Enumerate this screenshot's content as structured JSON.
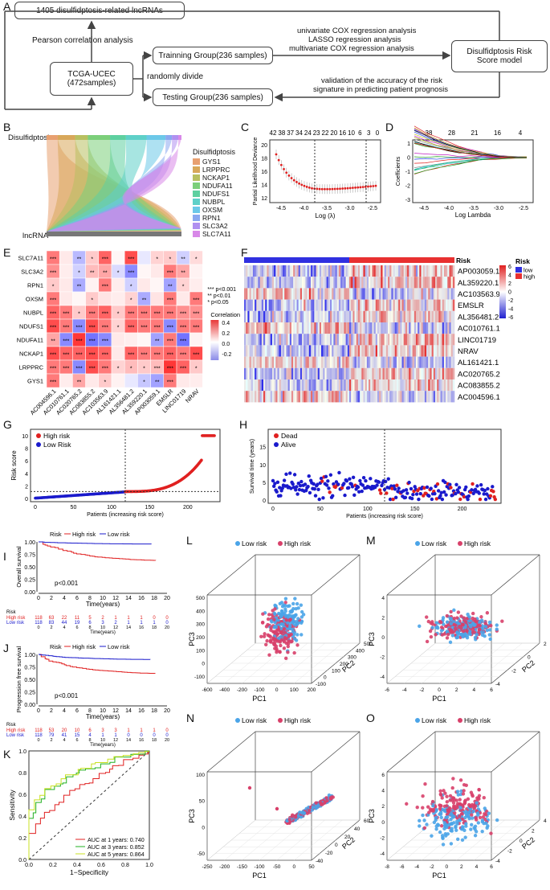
{
  "panelA": {
    "letter": "A",
    "box_lncrnas": "1405 disulfidptosis-related lncRNAs",
    "label_pearson": "Pearson correlation analysis",
    "box_tcga": "TCGA-UCEC\n(472samples)",
    "label_divide": "randomly divide",
    "box_training": "Trainning Group(236 samples)",
    "box_testing": "Testing Group(236 samples)",
    "methods": [
      "univariate COX regression analysis",
      "LASSO regression analysis",
      "multivariate COX regression analysis"
    ],
    "box_model": "Disulfidptosis Risk\nScore model",
    "validation": [
      "validation of the accuracy of the risk",
      "signature in predicting patient prognosis"
    ]
  },
  "panelB": {
    "letter": "B",
    "top_label": "Disulfidptosis",
    "bottom_label": "lncRNA",
    "legend_title": "Disulfidptosis",
    "genes": [
      "GYS1",
      "LRPPRC",
      "NCKAP1",
      "NDUFA11",
      "NDUFS1",
      "NUBPL",
      "OXSM",
      "RPN1",
      "SLC3A2",
      "SLC7A11"
    ],
    "colors": [
      "#e8a070",
      "#d8a85a",
      "#b8c060",
      "#7ccf7a",
      "#5ed0a0",
      "#5ed0c8",
      "#6cc8e8",
      "#8aa8f0",
      "#b090f0",
      "#d888e8"
    ]
  },
  "panelC": {
    "letter": "C",
    "top_ticks": [
      "42",
      "38",
      "37",
      "34",
      "24",
      "23",
      "22",
      "20",
      "16",
      "10",
      "6",
      "3",
      "0"
    ],
    "ylabel": "Partial Likelihood Deviance",
    "xlabel": "Log (λ)",
    "yticks": [
      "12",
      "14",
      "16",
      "18",
      "20"
    ],
    "xticks": [
      "-4.5",
      "-4.0",
      "-3.5",
      "-3.0",
      "-2.5"
    ]
  },
  "panelD": {
    "letter": "D",
    "top_ticks": [
      "38",
      "28",
      "21",
      "16",
      "4"
    ],
    "ylabel": "Coefficients",
    "xlabel": "Log Lambda",
    "yticks": [
      "-3",
      "-2",
      "-1",
      "0",
      "1"
    ],
    "xticks": [
      "-4.5",
      "-4.0",
      "-3.5",
      "-3.0",
      "-2.5"
    ]
  },
  "panelE": {
    "letter": "E",
    "rows": [
      "SLC7A11",
      "SLC3A2",
      "RPN1",
      "OXSM",
      "NUBPL",
      "NDUFS1",
      "NDUFA11",
      "NCKAP1",
      "LRPPRC",
      "GYS1"
    ],
    "cols": [
      "AC004596.1",
      "AC010761.1",
      "AC020765.2",
      "AC083855.2",
      "AC103563.9",
      "AL161421.1",
      "AL356481.2",
      "AL359220.1",
      "AP003059.1",
      "EMSLR",
      "LINC01719",
      "NRAV"
    ],
    "stars": [
      [
        "***",
        "",
        "**",
        "*",
        "***",
        "",
        "***",
        "",
        "*",
        "*",
        "**",
        "*"
      ],
      [
        "***",
        "",
        "*",
        "**",
        "**",
        "*",
        "***",
        "",
        "",
        "***",
        "**",
        ""
      ],
      [
        "*",
        "",
        "**",
        "",
        "***",
        "",
        "*",
        "",
        "",
        "**",
        "*",
        ""
      ],
      [
        "***",
        "",
        "",
        "*",
        "",
        "",
        "*",
        "**",
        "",
        "***",
        "",
        "***"
      ],
      [
        "***",
        "***",
        "*",
        "***",
        "***",
        "*",
        "***",
        "***",
        "***",
        "***",
        "***",
        "***"
      ],
      [
        "***",
        "***",
        "***",
        "***",
        "***",
        "*",
        "***",
        "***",
        "***",
        "***",
        "***",
        "***"
      ],
      [
        "**",
        "***",
        "***",
        "***",
        "***",
        "",
        "",
        "",
        "**",
        "***",
        "***",
        ""
      ],
      [
        "***",
        "***",
        "***",
        "***",
        "***",
        "",
        "***",
        "***",
        "***",
        "***",
        "***",
        "***"
      ],
      [
        "***",
        "***",
        "***",
        "***",
        "***",
        "*",
        "*",
        "*",
        "***",
        "***",
        "***",
        "*"
      ],
      [
        "***",
        "",
        "**",
        "",
        "*",
        "",
        "",
        "*",
        "**",
        "***",
        "",
        ""
      ]
    ],
    "values": [
      [
        0.3,
        0.05,
        -0.15,
        0.12,
        0.35,
        0.02,
        0.4,
        -0.05,
        0.1,
        0.12,
        -0.1,
        0.08
      ],
      [
        0.25,
        0.04,
        -0.1,
        0.15,
        0.2,
        -0.08,
        -0.25,
        0.02,
        0.05,
        0.3,
        0.2,
        0.03
      ],
      [
        0.12,
        0.05,
        -0.18,
        0.03,
        0.3,
        0.04,
        -0.1,
        0.05,
        0.02,
        -0.2,
        0.1,
        0.04
      ],
      [
        0.3,
        0.05,
        0.02,
        0.12,
        0.06,
        0.04,
        0.1,
        -0.18,
        0.06,
        0.3,
        0.05,
        0.3
      ],
      [
        0.35,
        0.3,
        0.12,
        0.3,
        0.35,
        0.12,
        0.3,
        0.3,
        0.3,
        0.3,
        0.25,
        0.25
      ],
      [
        0.4,
        0.3,
        -0.25,
        0.4,
        0.3,
        0.1,
        0.35,
        0.3,
        0.3,
        -0.25,
        0.3,
        0.3
      ],
      [
        0.2,
        -0.25,
        0.45,
        -0.3,
        -0.25,
        0.05,
        0.04,
        0.02,
        -0.2,
        0.3,
        -0.3,
        0.03
      ],
      [
        0.4,
        0.35,
        0.35,
        0.4,
        0.35,
        0.05,
        0.35,
        0.3,
        0.3,
        0.35,
        0.3,
        0.4
      ],
      [
        0.3,
        0.3,
        -0.25,
        0.4,
        0.3,
        0.1,
        0.15,
        0.12,
        0.15,
        0.45,
        0.35,
        0.12
      ],
      [
        0.3,
        0.04,
        0.2,
        0.05,
        0.12,
        0.03,
        -0.05,
        -0.12,
        -0.2,
        0.3,
        0.05,
        0.04
      ]
    ],
    "sig_legend": [
      "*** p<0.001",
      "**  p<0.01",
      "*   p<0.05"
    ],
    "corr_title": "Correlation",
    "corr_ticks": [
      "0.4",
      "0.2",
      "0.0",
      "-0.2"
    ]
  },
  "panelF": {
    "letter": "F",
    "risk_label": "Risk",
    "genes": [
      "AP003059.1",
      "AL359220.1",
      "AC103563.9",
      "EMSLR",
      "AL356481.2",
      "AC010761.1",
      "LINC01719",
      "NRAV",
      "AL161421.1",
      "AC020765.2",
      "AC083855.2",
      "AC004596.1"
    ],
    "scale_ticks": [
      "6",
      "4",
      "2",
      "0",
      "-2",
      "-4",
      "-6"
    ],
    "legend_title": "Risk",
    "legend_items": [
      "low",
      "high"
    ]
  },
  "panelG": {
    "letter": "G",
    "legend": [
      "High risk",
      "Low Risk"
    ],
    "ylabel": "Risk score",
    "xlabel": "Patients (increasing risk score)",
    "yticks": [
      "0",
      "2",
      "4",
      "6",
      "8",
      "10"
    ],
    "xticks": [
      "0",
      "50",
      "100",
      "150",
      "200"
    ]
  },
  "panelH": {
    "letter": "H",
    "legend": [
      "Dead",
      "Alive"
    ],
    "ylabel": "Survival time (years)",
    "xlabel": "Patients (increasing risk score)",
    "yticks": [
      "0",
      "5",
      "10",
      "15"
    ],
    "xticks": [
      "0",
      "50",
      "100",
      "150",
      "200"
    ]
  },
  "panelI": {
    "letter": "I",
    "legend": [
      "Risk",
      "High risk",
      "Low risk"
    ],
    "ylabel": "Overall survival",
    "xlabel": "Time(years)",
    "pvalue": "p<0.001",
    "yticks": [
      "0.00",
      "0.25",
      "0.50",
      "0.75",
      "1.00"
    ],
    "xticks": [
      "0",
      "2",
      "4",
      "6",
      "8",
      "10",
      "12",
      "14",
      "16",
      "18",
      "20"
    ],
    "risk_table_label": "Risk",
    "risk_rows": [
      {
        "name": "High risk",
        "counts": [
          "118",
          "63",
          "22",
          "11",
          "5",
          "2",
          "1",
          "1",
          "1",
          "0",
          "0"
        ]
      },
      {
        "name": "Low risk",
        "counts": [
          "118",
          "83",
          "44",
          "19",
          "6",
          "3",
          "2",
          "1",
          "1",
          "1",
          "0"
        ]
      }
    ]
  },
  "panelJ": {
    "letter": "J",
    "legend": [
      "Risk",
      "High risk",
      "Low risk"
    ],
    "ylabel": "Progression free survival",
    "xlabel": "Time(years)",
    "pvalue": "p<0.001",
    "yticks": [
      "0.00",
      "0.25",
      "0.50",
      "0.75",
      "1.00"
    ],
    "xticks": [
      "0",
      "2",
      "4",
      "6",
      "8",
      "10",
      "12",
      "14",
      "16",
      "18",
      "20"
    ],
    "risk_table_label": "Risk",
    "risk_rows": [
      {
        "name": "High risk",
        "counts": [
          "118",
          "53",
          "20",
          "10",
          "6",
          "3",
          "3",
          "1",
          "1",
          "1",
          "0"
        ]
      },
      {
        "name": "Low risk",
        "counts": [
          "118",
          "79",
          "41",
          "15",
          "4",
          "1",
          "1",
          "0",
          "0",
          "0",
          "0"
        ]
      }
    ]
  },
  "panelK": {
    "letter": "K",
    "ylabel": "Sensitivity",
    "xlabel": "1−Specificity",
    "ticks": [
      "0.0",
      "0.2",
      "0.4",
      "0.6",
      "0.8",
      "1.0"
    ],
    "legend": [
      "AUC at 1 years: 0.740",
      "AUC at 3 years: 0.852",
      "AUC at 5 years: 0.864"
    ],
    "colors": [
      "#e02020",
      "#22b022",
      "#c8e020"
    ]
  },
  "pcaPanels": [
    {
      "letter": "L",
      "legend": [
        "Low risk",
        "High risk"
      ],
      "x": "PC1",
      "y": "PC3",
      "z": "PC2",
      "xticks": [
        "-600",
        "-400",
        "-200",
        "-100",
        "0",
        "100",
        "200"
      ],
      "zticks": [
        "-100",
        "0",
        "100",
        "200",
        "300",
        "400",
        "500"
      ],
      "yticks": [
        "-100",
        "0",
        "100",
        "200",
        "300",
        "400",
        "500"
      ]
    },
    {
      "letter": "M",
      "legend": [
        "Low risk",
        "High risk"
      ],
      "x": "PC1",
      "y": "PC3",
      "z": "PC2",
      "xticks": [
        "-6",
        "-4",
        "-2",
        "0",
        "2",
        "4",
        "6"
      ],
      "zticks": [
        "-4",
        "-2",
        "0",
        "2"
      ],
      "yticks": [
        "-4",
        "-2",
        "0",
        "2",
        "4"
      ]
    },
    {
      "letter": "N",
      "legend": [
        "Low risk",
        "High risk"
      ],
      "x": "PC1",
      "y": "PC3",
      "z": "PC2",
      "xticks": [
        "-250",
        "-200",
        "-150",
        "-100",
        "-50",
        "0",
        "50"
      ],
      "zticks": [
        "-40",
        "-20",
        "0",
        "20",
        "40",
        "60"
      ],
      "yticks": [
        "-50",
        "0",
        "50",
        "100"
      ]
    },
    {
      "letter": "O",
      "legend": [
        "Low risk",
        "High risk"
      ],
      "x": "PC1",
      "y": "PC3",
      "z": "PC2",
      "xticks": [
        "-8",
        "-6",
        "-4",
        "-2",
        "0",
        "2",
        "4",
        "6"
      ],
      "zticks": [
        "-4",
        "-2",
        "0",
        "2",
        "4"
      ],
      "yticks": [
        "-4",
        "-2",
        "0",
        "2",
        "4",
        "6"
      ]
    }
  ],
  "colors": {
    "red": "#e02020",
    "blue": "#1a1acc",
    "pca_blue": "#4aa4e8",
    "pca_red": "#d8406a"
  }
}
